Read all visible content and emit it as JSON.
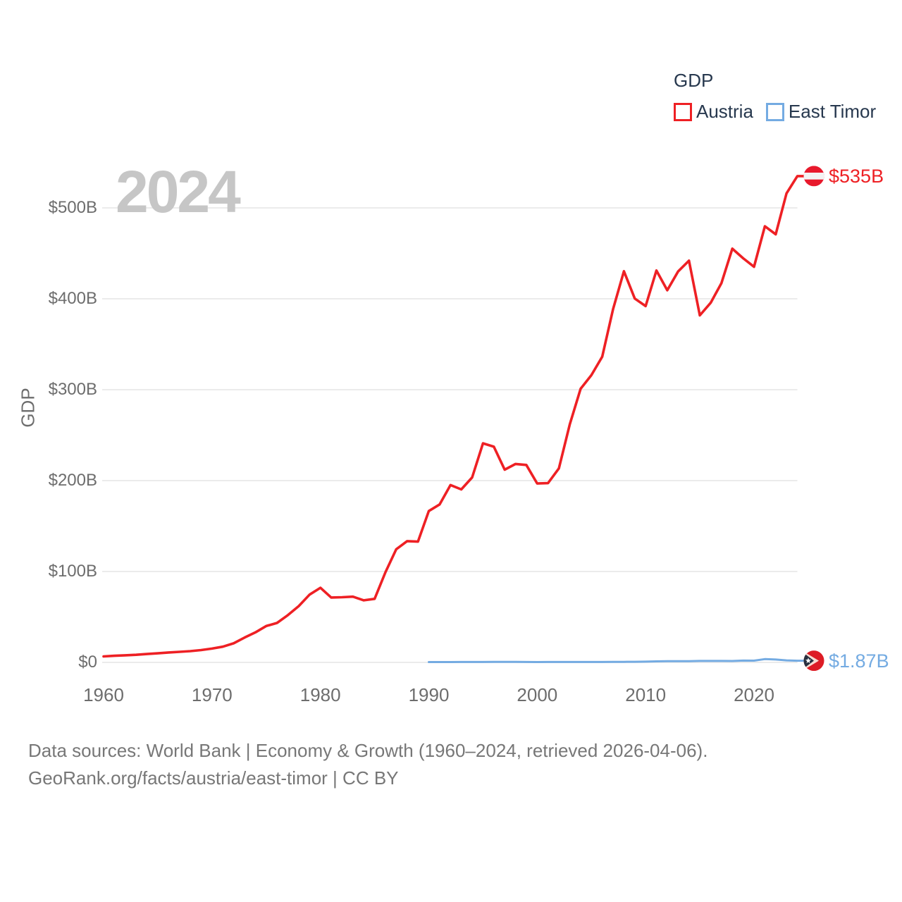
{
  "legend": {
    "title": "GDP",
    "series": [
      {
        "label": "Austria",
        "color": "#ee2024"
      },
      {
        "label": "East Timor",
        "color": "#74abe2"
      }
    ]
  },
  "watermark_year": "2024",
  "y_axis": {
    "title": "GDP",
    "tick_labels": [
      "$0",
      "$100B",
      "$200B",
      "$300B",
      "$400B",
      "$500B"
    ],
    "tick_values": [
      0,
      100,
      200,
      300,
      400,
      500
    ]
  },
  "x_axis": {
    "tick_labels": [
      "1960",
      "1970",
      "1980",
      "1990",
      "2000",
      "2010",
      "2020"
    ],
    "tick_values": [
      1960,
      1970,
      1980,
      1990,
      2000,
      2010,
      2020
    ]
  },
  "end_labels": {
    "austria": "$535B",
    "east_timor": "$1.87B"
  },
  "icons": {
    "austria": "austria-flag-icon",
    "east_timor": "east-timor-flag-icon"
  },
  "footer": {
    "line1": "Data sources: World Bank | Economy & Growth (1960–2024, retrieved 2026-04-06).",
    "line2": "GeoRank.org/facts/austria/east-timor | CC BY"
  },
  "chart_data": {
    "type": "line",
    "title": "GDP",
    "ylabel": "GDP",
    "unit": "billion USD",
    "x_range": [
      1960,
      2024
    ],
    "ylim": [
      0,
      550
    ],
    "grid": true,
    "legend_position": "top-right",
    "series": [
      {
        "name": "Austria",
        "color": "#ee2024",
        "start_year": 1960,
        "end_value_label": "$535B",
        "values": [
          6.6,
          7.3,
          7.8,
          8.4,
          9.2,
          10.0,
          10.9,
          11.6,
          12.4,
          13.6,
          15.2,
          17.3,
          21.0,
          27.3,
          33.0,
          40.0,
          43.4,
          52.0,
          61.9,
          74.6,
          82.1,
          71.4,
          71.7,
          72.3,
          68.3,
          69.9,
          99.2,
          124.5,
          133.4,
          132.9,
          166.5,
          173.8,
          195.1,
          190.3,
          203.5,
          241.0,
          237.3,
          212.0,
          218.3,
          217.2,
          196.8,
          197.2,
          213.4,
          261.7,
          300.9,
          316.0,
          336.3,
          388.7,
          430.3,
          400.2,
          391.9,
          431.1,
          409.4,
          430.1,
          441.9,
          381.8,
          395.6,
          417.3,
          455.1,
          444.6,
          435.2,
          479.8,
          470.9,
          516.0,
          535.0
        ]
      },
      {
        "name": "East Timor",
        "color": "#74abe2",
        "start_year": 1990,
        "end_value_label": "$1.87B",
        "values": [
          0.37,
          0.39,
          0.41,
          0.43,
          0.46,
          0.49,
          0.52,
          0.55,
          0.52,
          0.44,
          0.37,
          0.48,
          0.47,
          0.5,
          0.46,
          0.48,
          0.45,
          0.54,
          0.65,
          0.72,
          0.88,
          1.13,
          1.29,
          1.37,
          1.4,
          1.59,
          1.65,
          1.6,
          1.56,
          2.0,
          1.9,
          3.62,
          3.2,
          2.24,
          1.87
        ]
      }
    ]
  }
}
